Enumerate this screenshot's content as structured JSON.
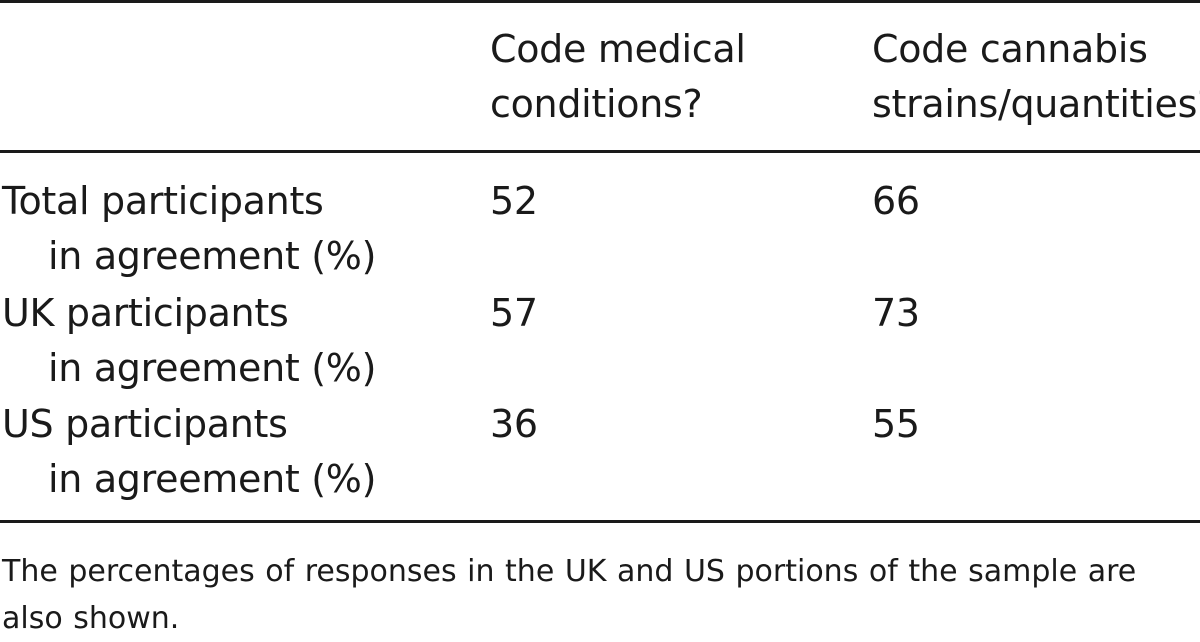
{
  "table": {
    "columns": [
      {
        "lines": [
          "Code medical",
          "conditions?"
        ]
      },
      {
        "lines": [
          "Code cannabis",
          "strains/quantities?"
        ]
      }
    ],
    "rows": [
      {
        "label_lines": [
          "Total participants",
          "in agreement (%)"
        ],
        "values": [
          "52",
          "66"
        ]
      },
      {
        "label_lines": [
          "UK participants",
          "in agreement (%)"
        ],
        "values": [
          "57",
          "73"
        ]
      },
      {
        "label_lines": [
          "US participants",
          "in agreement (%)"
        ],
        "values": [
          "36",
          "55"
        ]
      }
    ]
  },
  "footnote": "The percentages of responses in the UK and US portions of the sample are also shown."
}
